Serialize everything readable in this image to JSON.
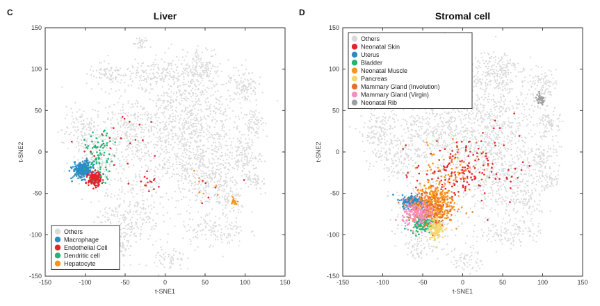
{
  "chart_data": [
    {
      "panel": "C",
      "type": "scatter",
      "title": "Liver",
      "xlabel": "t-SNE1",
      "ylabel": "t-SNE2",
      "xlim": [
        -150,
        150
      ],
      "ylim": [
        -150,
        150
      ],
      "xticks": [
        -150,
        -100,
        -50,
        0,
        50,
        100,
        150
      ],
      "yticks": [
        150,
        100,
        50,
        0,
        -50,
        -100,
        -150
      ],
      "legend_position": "bottom-left",
      "series": [
        {
          "name": "Others",
          "color": "#d9d9d9",
          "role": "background"
        },
        {
          "name": "Macrophage",
          "color": "#2b8cc4",
          "clusters": [
            {
              "cx": -103,
              "cy": -22,
              "sx": 6,
              "sy": 5,
              "n": 260
            }
          ]
        },
        {
          "name": "Endothelial Cell",
          "color": "#e3242b",
          "clusters": [
            {
              "cx": -88,
              "cy": -33,
              "sx": 4,
              "sy": 4,
              "n": 200
            },
            {
              "cx": -60,
              "cy": 10,
              "sx": 25,
              "sy": 20,
              "n": 25
            },
            {
              "cx": -20,
              "cy": -38,
              "sx": 5,
              "sy": 6,
              "n": 14
            },
            {
              "cx": 60,
              "cy": -40,
              "sx": 15,
              "sy": 12,
              "n": 6
            }
          ]
        },
        {
          "name": "Dendritic cell",
          "color": "#22b573",
          "clusters": [
            {
              "cx": -82,
              "cy": -5,
              "sx": 9,
              "sy": 14,
              "n": 80
            }
          ]
        },
        {
          "name": "Hepatocyte",
          "color": "#f7931e",
          "clusters": [
            {
              "cx": 87,
              "cy": -60,
              "sx": 2,
              "sy": 2,
              "n": 14
            },
            {
              "cx": 50,
              "cy": -40,
              "sx": 15,
              "sy": 10,
              "n": 8
            }
          ]
        }
      ]
    },
    {
      "panel": "D",
      "type": "scatter",
      "title": "Stromal cell",
      "xlabel": "t-SNE1",
      "ylabel": "t-SNE2",
      "xlim": [
        -150,
        150
      ],
      "ylim": [
        -150,
        150
      ],
      "xticks": [
        -150,
        -100,
        -50,
        0,
        50,
        100,
        150
      ],
      "yticks": [
        150,
        100,
        50,
        0,
        -50,
        -100,
        -150
      ],
      "legend_position": "top-left",
      "series": [
        {
          "name": "Others",
          "color": "#d9d9d9",
          "role": "background"
        },
        {
          "name": "Neonatal Skin",
          "color": "#e3242b",
          "clusters": [
            {
              "cx": -10,
              "cy": -25,
              "sx": 25,
              "sy": 18,
              "n": 140
            },
            {
              "cx": 40,
              "cy": -10,
              "sx": 25,
              "sy": 30,
              "n": 30
            }
          ]
        },
        {
          "name": "Uterus",
          "color": "#2b8cc4",
          "clusters": [
            {
              "cx": -60,
              "cy": -60,
              "sx": 8,
              "sy": 4,
              "n": 220
            }
          ]
        },
        {
          "name": "Bladder",
          "color": "#22b573",
          "clusters": [
            {
              "cx": -50,
              "cy": -86,
              "sx": 8,
              "sy": 5,
              "n": 120
            }
          ]
        },
        {
          "name": "Neonatal Muscle",
          "color": "#f7931e",
          "clusters": [
            {
              "cx": -35,
              "cy": -62,
              "sx": 12,
              "sy": 12,
              "n": 320
            },
            {
              "cx": -20,
              "cy": -20,
              "sx": 12,
              "sy": 15,
              "n": 40
            }
          ]
        },
        {
          "name": "Pancreas",
          "color": "#f5d76e",
          "clusters": [
            {
              "cx": -33,
              "cy": -90,
              "sx": 5,
              "sy": 8,
              "n": 140
            }
          ]
        },
        {
          "name": "Mammary Gland (Involution)",
          "color": "#e8702a",
          "clusters": [
            {
              "cx": -45,
              "cy": -70,
              "sx": 12,
              "sy": 10,
              "n": 160
            },
            {
              "cx": 0,
              "cy": -10,
              "sx": 20,
              "sy": 20,
              "n": 20
            }
          ]
        },
        {
          "name": "Mammary Gland (Virgin)",
          "color": "#f48fc0",
          "clusters": [
            {
              "cx": -55,
              "cy": -75,
              "sx": 10,
              "sy": 8,
              "n": 180
            }
          ]
        },
        {
          "name": "Neonatal Rib",
          "color": "#9e9e9e",
          "clusters": [
            {
              "cx": 97,
              "cy": 63,
              "sx": 3,
              "sy": 3,
              "n": 40
            }
          ]
        }
      ]
    }
  ]
}
